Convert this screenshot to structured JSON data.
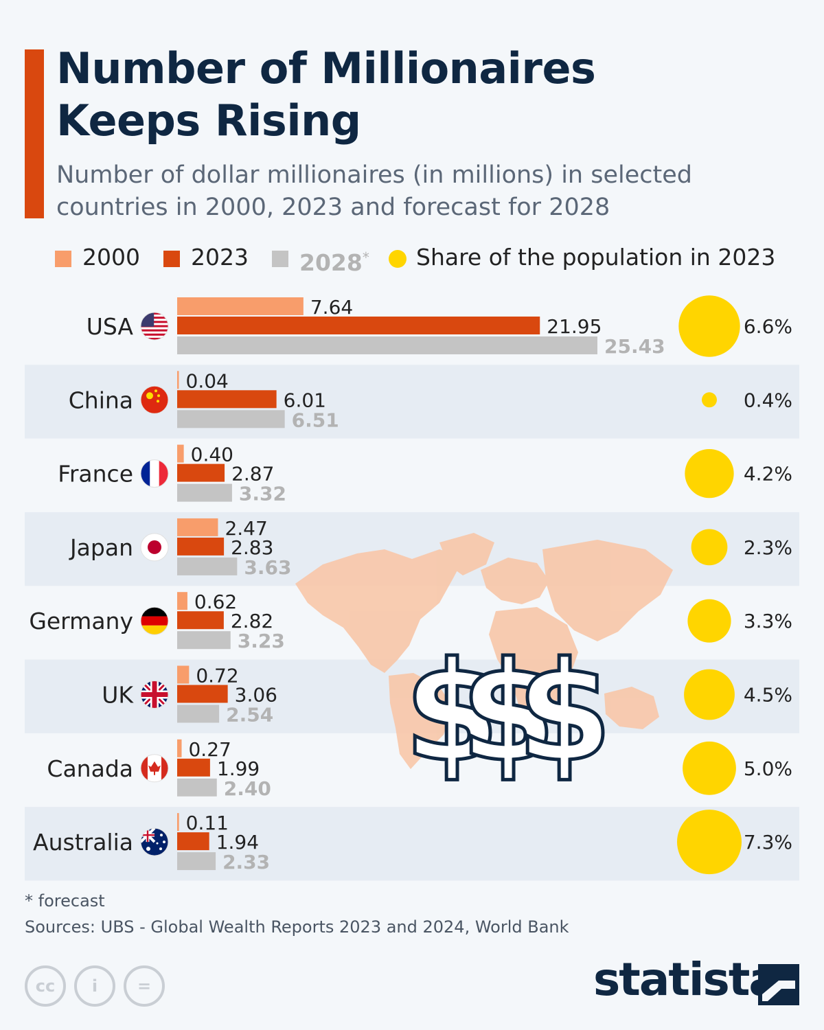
{
  "title_line1": "Number of Millionaires",
  "title_line2": "Keeps Rising",
  "subtitle_line1": "Number of dollar millionaires (in millions) in selected",
  "subtitle_line2": "countries in 2000, 2023 and forecast for 2028",
  "legend": {
    "item_2000": "2000",
    "item_2023": "2023",
    "item_2028": "2028",
    "item_2028_mark": "*",
    "item_share": "Share of the population in 2023"
  },
  "colors": {
    "accent": "#d9480f",
    "bar_2000": "#f89d6b",
    "bar_2023": "#d9480f",
    "bar_2028": "#c4c4c4",
    "bubble": "#ffd500",
    "map": "#f8c7a8",
    "title": "#0f2742",
    "band": "#e6ecf3"
  },
  "chart_data": {
    "type": "bar",
    "orientation": "horizontal",
    "categories": [
      "USA",
      "China",
      "France",
      "Japan",
      "Germany",
      "UK",
      "Canada",
      "Australia"
    ],
    "flags": [
      "us-flag-icon",
      "china-flag-icon",
      "france-flag-icon",
      "japan-flag-icon",
      "germany-flag-icon",
      "uk-flag-icon",
      "canada-flag-icon",
      "australia-flag-icon"
    ],
    "series": [
      {
        "name": "2000",
        "color": "#f89d6b",
        "values": [
          7.64,
          0.04,
          0.4,
          2.47,
          0.62,
          0.72,
          0.27,
          0.11
        ],
        "labels": [
          "7.64",
          "0.04",
          "0.40",
          "2.47",
          "0.62",
          "0.72",
          "0.27",
          "0.11"
        ]
      },
      {
        "name": "2023",
        "color": "#d9480f",
        "values": [
          21.95,
          6.01,
          2.87,
          2.83,
          2.82,
          3.06,
          1.99,
          1.94
        ],
        "labels": [
          "21.95",
          "6.01",
          "2.87",
          "2.83",
          "2.82",
          "3.06",
          "1.99",
          "1.94"
        ]
      },
      {
        "name": "2028*",
        "color": "#c4c4c4",
        "values": [
          25.43,
          6.51,
          3.32,
          3.63,
          3.23,
          2.54,
          2.4,
          2.33
        ],
        "labels": [
          "25.43",
          "6.51",
          "3.32",
          "3.63",
          "3.23",
          "2.54",
          "2.40",
          "2.33"
        ]
      }
    ],
    "share_of_population_2023": {
      "name": "Share of the population in 2023",
      "values": [
        6.6,
        0.4,
        4.2,
        2.3,
        3.3,
        4.5,
        5.0,
        7.3
      ],
      "labels": [
        "6.6%",
        "0.4%",
        "4.2%",
        "2.3%",
        "3.3%",
        "4.5%",
        "5.0%",
        "7.3%"
      ]
    },
    "value_axis_range": [
      0,
      25.43
    ],
    "axis_visible": false,
    "grid": false,
    "legend_position": "top",
    "alternating_row_bands": true
  },
  "decoration": {
    "dollar_signs": "$$$"
  },
  "footnote": "* forecast",
  "sources": "Sources: UBS - Global Wealth Reports 2023 and 2024, World Bank",
  "license_icons": [
    "cc",
    "by",
    "nd"
  ],
  "license_text": [
    "cc",
    "i",
    "="
  ],
  "brand": "statista"
}
